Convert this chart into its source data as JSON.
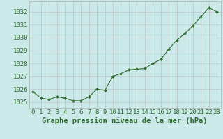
{
  "x": [
    0,
    1,
    2,
    3,
    4,
    5,
    6,
    7,
    8,
    9,
    10,
    11,
    12,
    13,
    14,
    15,
    16,
    17,
    18,
    19,
    20,
    21,
    22,
    23
  ],
  "y": [
    1025.8,
    1025.3,
    1025.2,
    1025.4,
    1025.3,
    1025.1,
    1025.1,
    1025.4,
    1026.0,
    1025.9,
    1027.0,
    1027.2,
    1027.5,
    1027.55,
    1027.6,
    1028.0,
    1028.3,
    1029.1,
    1029.8,
    1030.3,
    1030.9,
    1031.6,
    1032.3,
    1032.0
  ],
  "line_color": "#2d6a2d",
  "marker_color": "#2d6a2d",
  "bg_color": "#cce9e9",
  "grid_color": "#b0b0b0",
  "xlabel": "Graphe pression niveau de la mer (hPa)",
  "xlabel_color": "#2d6a2d",
  "tick_color": "#2d6a2d",
  "ylim": [
    1024.5,
    1032.8
  ],
  "yticks": [
    1025,
    1026,
    1027,
    1028,
    1029,
    1030,
    1031,
    1032
  ],
  "xticks": [
    0,
    1,
    2,
    3,
    4,
    5,
    6,
    7,
    8,
    9,
    10,
    11,
    12,
    13,
    14,
    15,
    16,
    17,
    18,
    19,
    20,
    21,
    22,
    23
  ],
  "tick_fontsize": 6.5,
  "xlabel_fontsize": 7.5
}
